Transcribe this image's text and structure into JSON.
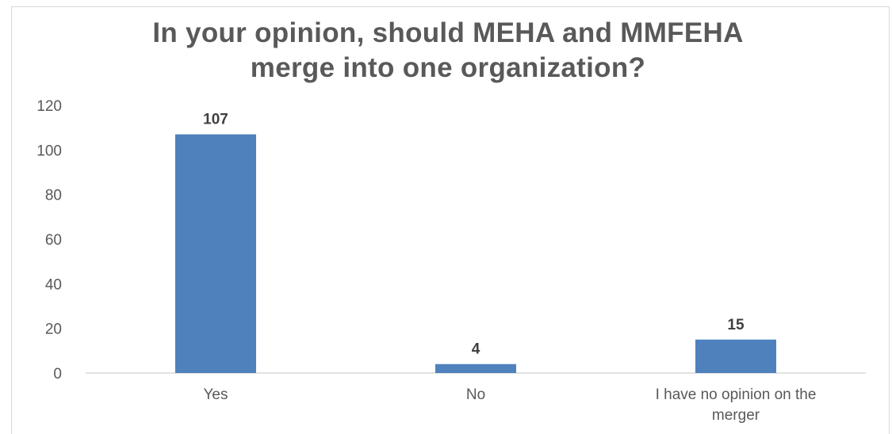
{
  "chart_data": {
    "type": "bar",
    "title_lines": [
      "In your opinion, should MEHA and MMFEHA",
      "merge into one organization?"
    ],
    "categories": [
      [
        "Yes"
      ],
      [
        "No"
      ],
      [
        "I have no opinion on the",
        "merger"
      ]
    ],
    "values": [
      107,
      4,
      15
    ],
    "ylim": [
      0,
      120
    ],
    "yticks": [
      0,
      20,
      40,
      60,
      80,
      100,
      120
    ],
    "xlabel": "",
    "ylabel": "",
    "grid": false,
    "legend": "none",
    "bar_color": "#4f81bd",
    "data_labels": true
  }
}
